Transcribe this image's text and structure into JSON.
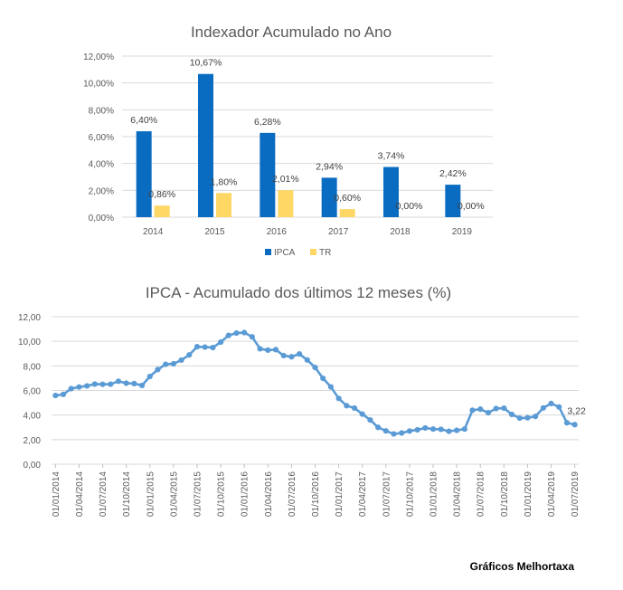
{
  "chart_data": [
    {
      "type": "bar",
      "title": "Indexador Acumulado no Ano",
      "categories": [
        "2014",
        "2015",
        "2016",
        "2017",
        "2018",
        "2019"
      ],
      "series": [
        {
          "name": "IPCA",
          "values": [
            6.4,
            10.67,
            6.28,
            2.94,
            3.74,
            2.42
          ],
          "labels": [
            "6,40%",
            "10,67%",
            "6,28%",
            "2,94%",
            "3,74%",
            "2,42%"
          ],
          "color": "#0A6CC1"
        },
        {
          "name": "TR",
          "values": [
            0.86,
            1.8,
            2.01,
            0.6,
            0.0,
            0.0
          ],
          "labels": [
            "0,86%",
            "1,80%",
            "2,01%",
            "0,60%",
            "0,00%",
            "0,00%"
          ],
          "color": "#FED765"
        }
      ],
      "ylim": [
        0,
        12
      ],
      "yticks": [
        "0,00%",
        "2,00%",
        "4,00%",
        "6,00%",
        "8,00%",
        "10,00%",
        "12,00%"
      ],
      "grid": true,
      "legend": "bottom"
    },
    {
      "type": "line",
      "title": "IPCA - Acumulado dos últimos 12 meses (%)",
      "series": [
        {
          "name": "IPCA",
          "color": "#5B9BD5",
          "values": [
            5.59,
            5.68,
            6.15,
            6.28,
            6.37,
            6.52,
            6.5,
            6.51,
            6.75,
            6.59,
            6.56,
            6.41,
            7.14,
            7.7,
            8.13,
            8.17,
            8.47,
            8.89,
            9.56,
            9.53,
            9.49,
            9.93,
            10.48,
            10.67,
            10.71,
            10.36,
            9.39,
            9.28,
            9.32,
            8.84,
            8.74,
            8.97,
            8.48,
            7.87,
            6.99,
            6.29,
            5.35,
            4.76,
            4.57,
            4.08,
            3.6,
            3.0,
            2.71,
            2.46,
            2.54,
            2.7,
            2.8,
            2.95,
            2.86,
            2.84,
            2.68,
            2.76,
            2.86,
            4.39,
            4.48,
            4.19,
            4.53,
            4.56,
            4.05,
            3.75,
            3.78,
            3.89,
            4.58,
            4.94,
            4.66,
            3.37,
            3.22
          ]
        }
      ],
      "last_label": "3,22",
      "x_tick_labels": [
        "01/01/2014",
        "01/04/2014",
        "01/07/2014",
        "01/10/2014",
        "01/01/2015",
        "01/04/2015",
        "01/07/2015",
        "01/10/2015",
        "01/01/2016",
        "01/04/2016",
        "01/07/2016",
        "01/10/2016",
        "01/01/2017",
        "01/04/2017",
        "01/07/2017",
        "01/10/2017",
        "01/01/2018",
        "01/04/2018",
        "01/07/2018",
        "01/10/2018",
        "01/01/2019",
        "01/04/2019",
        "01/07/2019"
      ],
      "ylim": [
        0,
        12
      ],
      "yticks": [
        "0,00",
        "2,00",
        "4,00",
        "6,00",
        "8,00",
        "10,00",
        "12,00"
      ],
      "grid": true
    }
  ],
  "footer": "Gráficos Melhortaxa"
}
